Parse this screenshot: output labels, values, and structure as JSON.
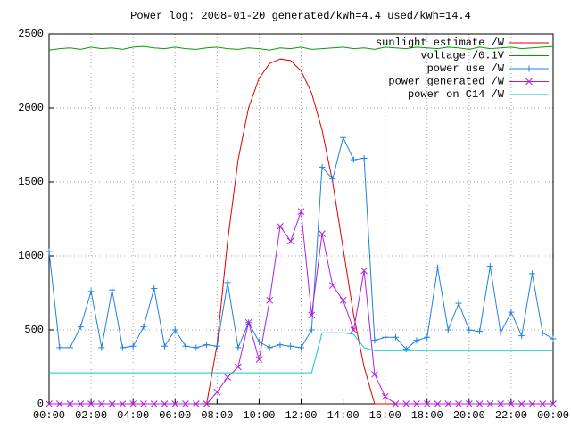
{
  "chart_data": {
    "type": "line",
    "title": "Power log: 2008-01-20 generated/kWh=4.4 used/kWh=14.4",
    "x": [
      0,
      0.5,
      1,
      1.5,
      2,
      2.5,
      3,
      3.5,
      4,
      4.5,
      5,
      5.5,
      6,
      6.5,
      7,
      7.5,
      8,
      8.5,
      9,
      9.5,
      10,
      10.5,
      11,
      11.5,
      12,
      12.5,
      13,
      13.5,
      14,
      14.5,
      15,
      15.5,
      16,
      16.5,
      17,
      17.5,
      18,
      18.5,
      19,
      19.5,
      20,
      20.5,
      21,
      21.5,
      22,
      22.5,
      23,
      23.5,
      24
    ],
    "xlim": [
      0,
      24
    ],
    "xticks": [
      {
        "value": 0,
        "label": "00:00"
      },
      {
        "value": 2,
        "label": "02:00"
      },
      {
        "value": 4,
        "label": "04:00"
      },
      {
        "value": 6,
        "label": "06:00"
      },
      {
        "value": 8,
        "label": "08:00"
      },
      {
        "value": 10,
        "label": "10:00"
      },
      {
        "value": 12,
        "label": "12:00"
      },
      {
        "value": 14,
        "label": "14:00"
      },
      {
        "value": 16,
        "label": "16:00"
      },
      {
        "value": 18,
        "label": "18:00"
      },
      {
        "value": 20,
        "label": "20:00"
      },
      {
        "value": 22,
        "label": "22:00"
      },
      {
        "value": 24,
        "label": "00:00"
      }
    ],
    "ylim": [
      0,
      2500
    ],
    "yticks": [
      0,
      500,
      1000,
      1500,
      2000,
      2500
    ],
    "grid": true,
    "legend": "top-right",
    "series": [
      {
        "name": "sunlight estimate /W",
        "color": "#e00000",
        "marker": "none",
        "values": [
          0,
          0,
          0,
          0,
          0,
          0,
          0,
          0,
          0,
          0,
          0,
          0,
          0,
          0,
          0,
          0,
          400,
          1100,
          1650,
          2000,
          2200,
          2300,
          2330,
          2320,
          2250,
          2100,
          1850,
          1500,
          1050,
          600,
          250,
          0,
          0,
          0,
          0,
          0,
          0,
          0,
          0,
          0,
          0,
          0,
          0,
          0,
          0,
          0,
          0,
          0,
          0
        ]
      },
      {
        "name": "voltage /0.1V",
        "color": "#00a000",
        "marker": "none",
        "values": [
          2390,
          2400,
          2405,
          2395,
          2410,
          2400,
          2405,
          2395,
          2410,
          2415,
          2405,
          2400,
          2410,
          2400,
          2395,
          2405,
          2410,
          2400,
          2395,
          2405,
          2400,
          2390,
          2405,
          2400,
          2410,
          2395,
          2400,
          2405,
          2410,
          2400,
          2405,
          2395,
          2410,
          2405,
          2400,
          2410,
          2405,
          2400,
          2410,
          2405,
          2395,
          2410,
          2400,
          2405,
          2410,
          2400,
          2405,
          2410,
          2415
        ]
      },
      {
        "name": "power use /W",
        "color": "#2080e0",
        "marker": "+",
        "values": [
          1030,
          380,
          380,
          520,
          760,
          380,
          770,
          380,
          390,
          520,
          780,
          390,
          500,
          390,
          380,
          400,
          390,
          820,
          380,
          550,
          420,
          380,
          400,
          390,
          380,
          500,
          1600,
          1520,
          1800,
          1650,
          1660,
          430,
          450,
          450,
          370,
          430,
          450,
          920,
          500,
          680,
          500,
          490,
          930,
          480,
          620,
          460,
          880,
          480,
          440
        ]
      },
      {
        "name": "power generated /W",
        "color": "#b020e0",
        "marker": "x",
        "values": [
          0,
          0,
          0,
          0,
          0,
          0,
          0,
          0,
          0,
          0,
          0,
          0,
          0,
          0,
          0,
          0,
          80,
          180,
          250,
          550,
          300,
          700,
          1200,
          1100,
          1300,
          600,
          1150,
          800,
          700,
          500,
          900,
          200,
          50,
          0,
          0,
          0,
          0,
          0,
          0,
          0,
          0,
          0,
          0,
          0,
          0,
          0,
          0,
          0,
          0
        ]
      },
      {
        "name": "power on C14 /W",
        "color": "#00d0d0",
        "marker": "none",
        "values": [
          210,
          210,
          210,
          210,
          210,
          210,
          210,
          210,
          210,
          210,
          210,
          210,
          210,
          210,
          210,
          210,
          210,
          210,
          210,
          210,
          210,
          210,
          210,
          210,
          210,
          210,
          480,
          480,
          480,
          470,
          380,
          360,
          360,
          360,
          360,
          360,
          360,
          360,
          360,
          360,
          360,
          360,
          360,
          360,
          360,
          360,
          360,
          360,
          360
        ]
      }
    ]
  }
}
